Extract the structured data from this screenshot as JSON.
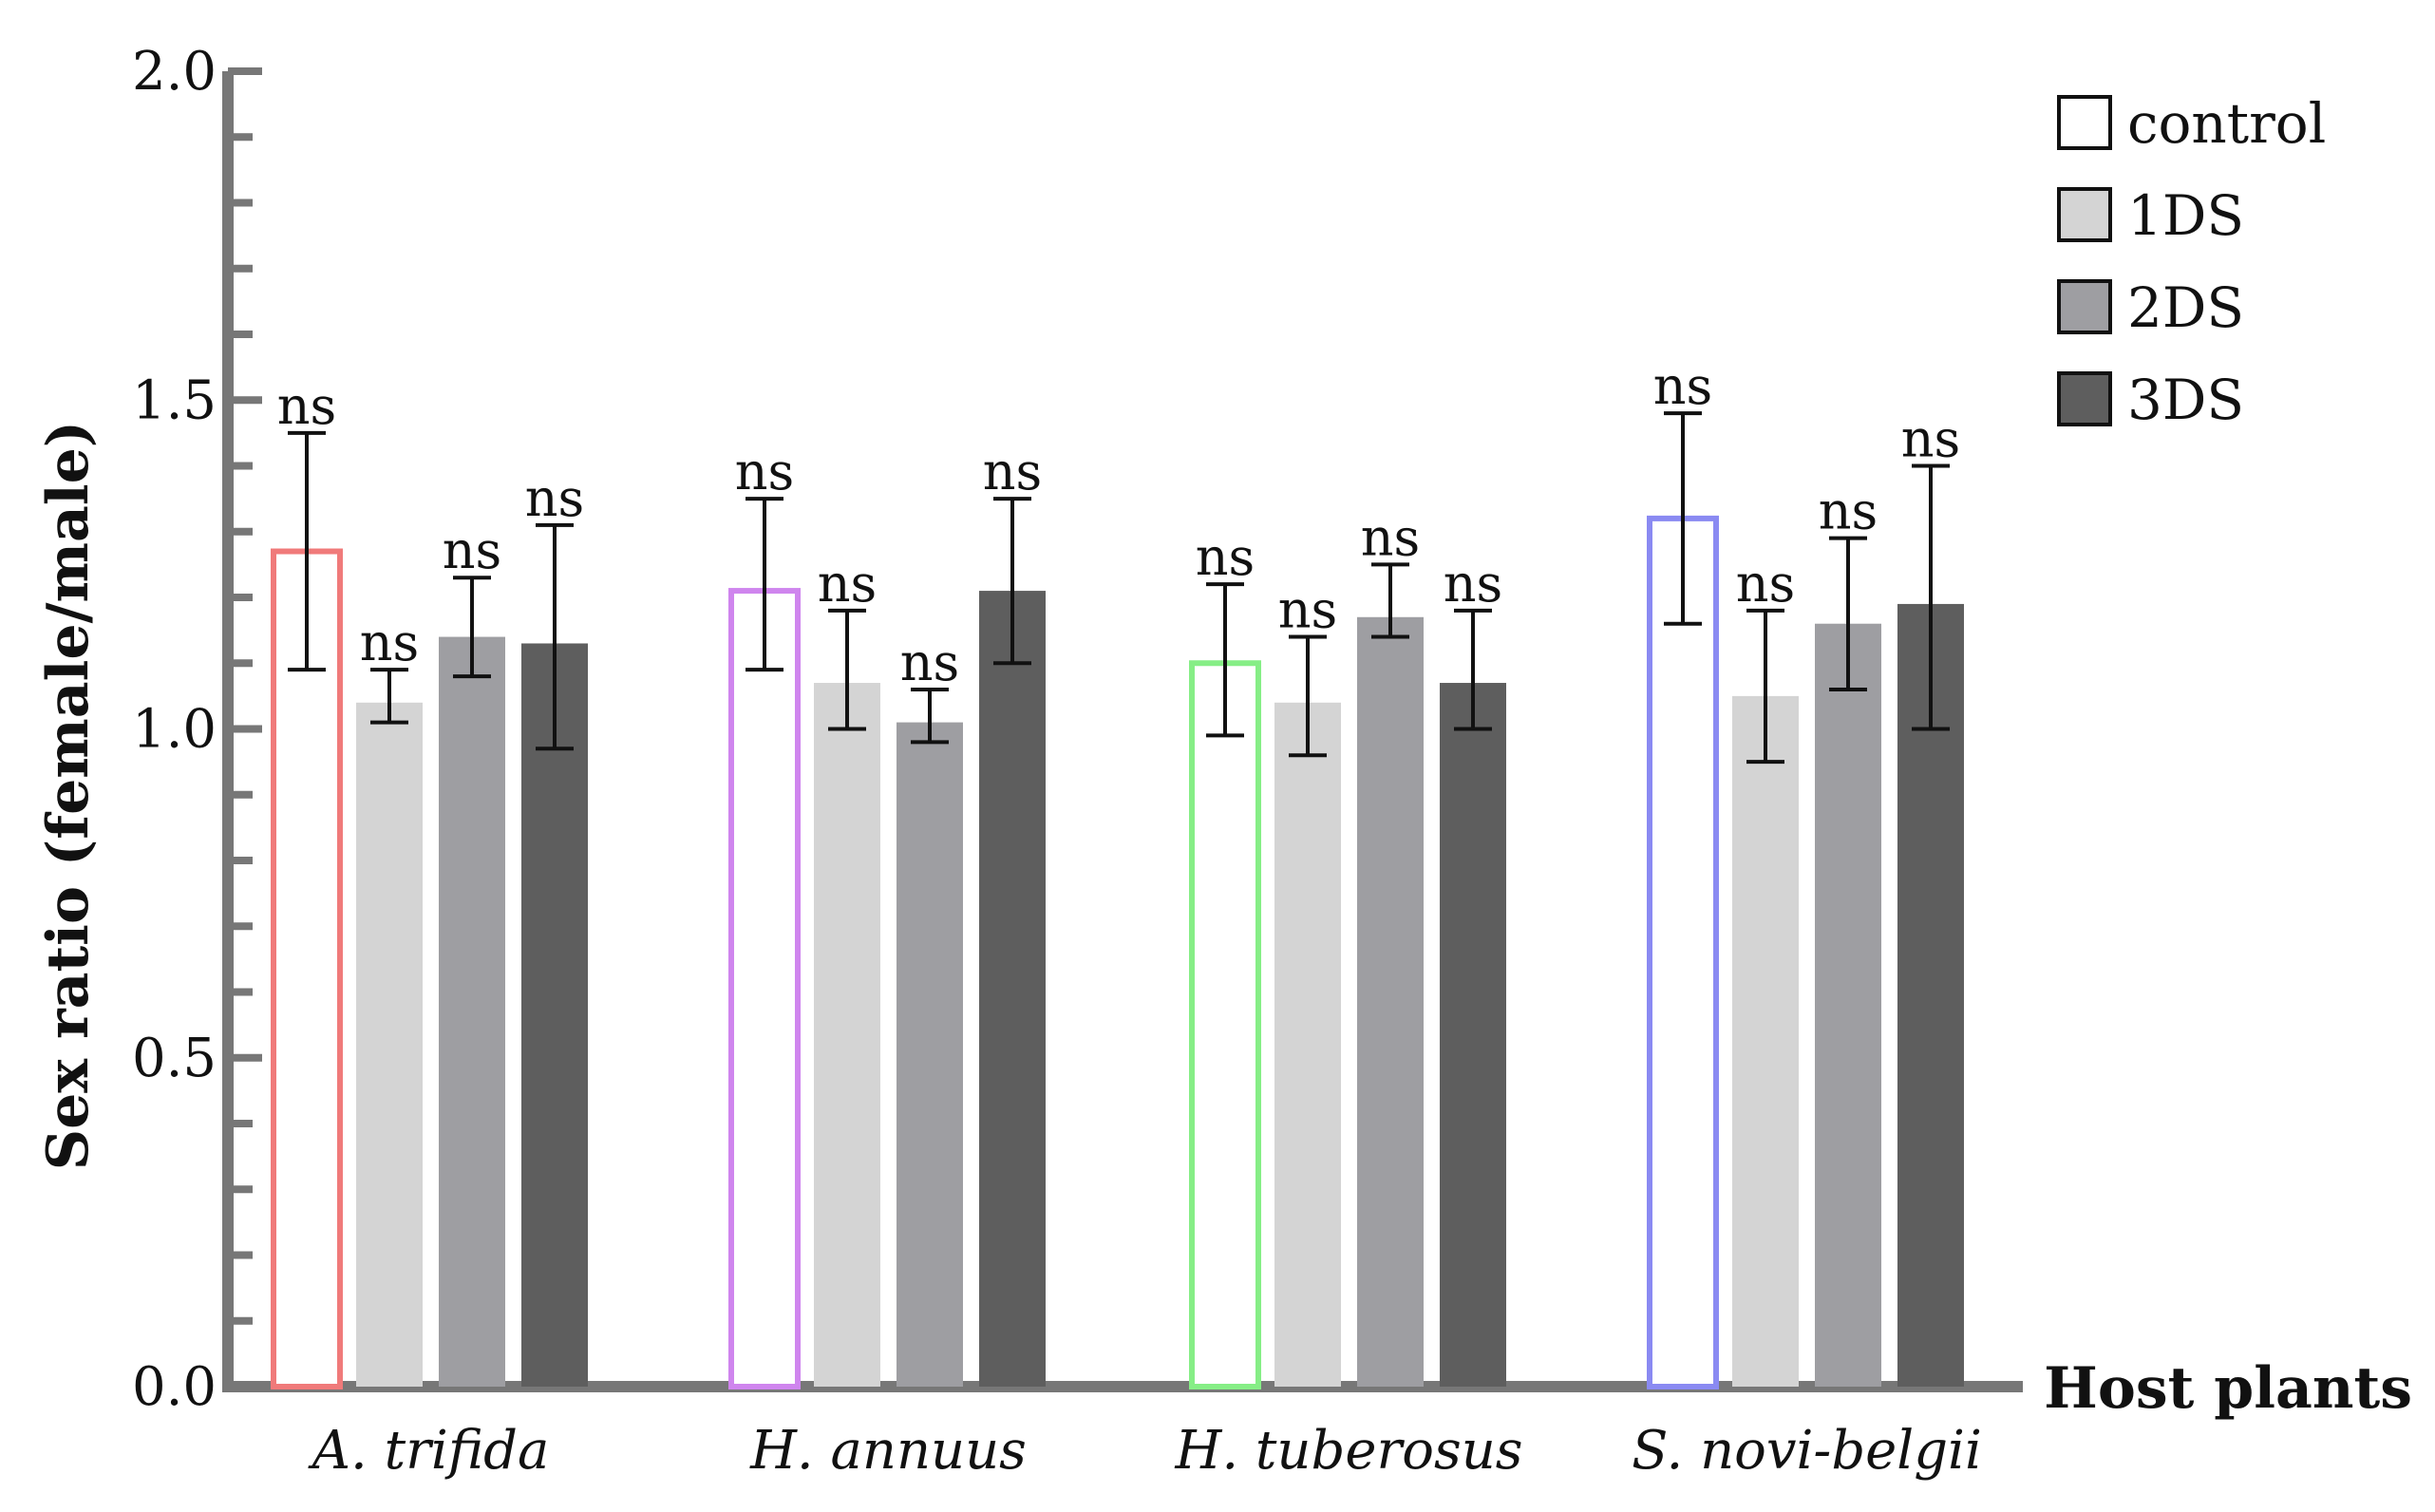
{
  "chart_data": {
    "type": "bar",
    "title": "",
    "xlabel": "Host plants",
    "ylabel": "Sex ratio (female/male)",
    "ylim": [
      0,
      2.0
    ],
    "yticks": [
      "0.0",
      "0.5",
      "1.0",
      "1.5",
      "2.0"
    ],
    "legend_position": "top-right",
    "categories": [
      "A. trifida",
      "H. annuus",
      "H. tuberosus",
      "S. novi-belgii"
    ],
    "control_edge_colors": [
      "#f07a7a",
      "#cf85ee",
      "#86ee86",
      "#8a8af2"
    ],
    "series": [
      {
        "name": "control",
        "fill": "#ffffff",
        "values": [
          1.27,
          1.21,
          1.1,
          1.32
        ],
        "err_low": [
          1.09,
          1.09,
          0.99,
          1.16
        ],
        "err_high": [
          1.45,
          1.35,
          1.22,
          1.48
        ],
        "labels": [
          "ns",
          "ns",
          "ns",
          "ns"
        ]
      },
      {
        "name": "1DS",
        "fill": "#d4d4d4",
        "values": [
          1.04,
          1.07,
          1.04,
          1.05
        ],
        "err_low": [
          1.01,
          1.0,
          0.96,
          0.95
        ],
        "err_high": [
          1.09,
          1.18,
          1.14,
          1.18
        ],
        "labels": [
          "ns",
          "ns",
          "ns",
          "ns"
        ]
      },
      {
        "name": "2DS",
        "fill": "#9e9ea2",
        "values": [
          1.14,
          1.01,
          1.17,
          1.16
        ],
        "err_low": [
          1.08,
          0.98,
          1.14,
          1.06
        ],
        "err_high": [
          1.23,
          1.06,
          1.25,
          1.29
        ],
        "labels": [
          "ns",
          "ns",
          "ns",
          "ns"
        ]
      },
      {
        "name": "3DS",
        "fill": "#5e5e5e",
        "values": [
          1.13,
          1.21,
          1.07,
          1.19
        ],
        "err_low": [
          0.97,
          1.1,
          1.0,
          1.0
        ],
        "err_high": [
          1.31,
          1.35,
          1.18,
          1.4
        ],
        "labels": [
          "ns",
          "ns",
          "ns",
          "ns"
        ]
      }
    ]
  }
}
